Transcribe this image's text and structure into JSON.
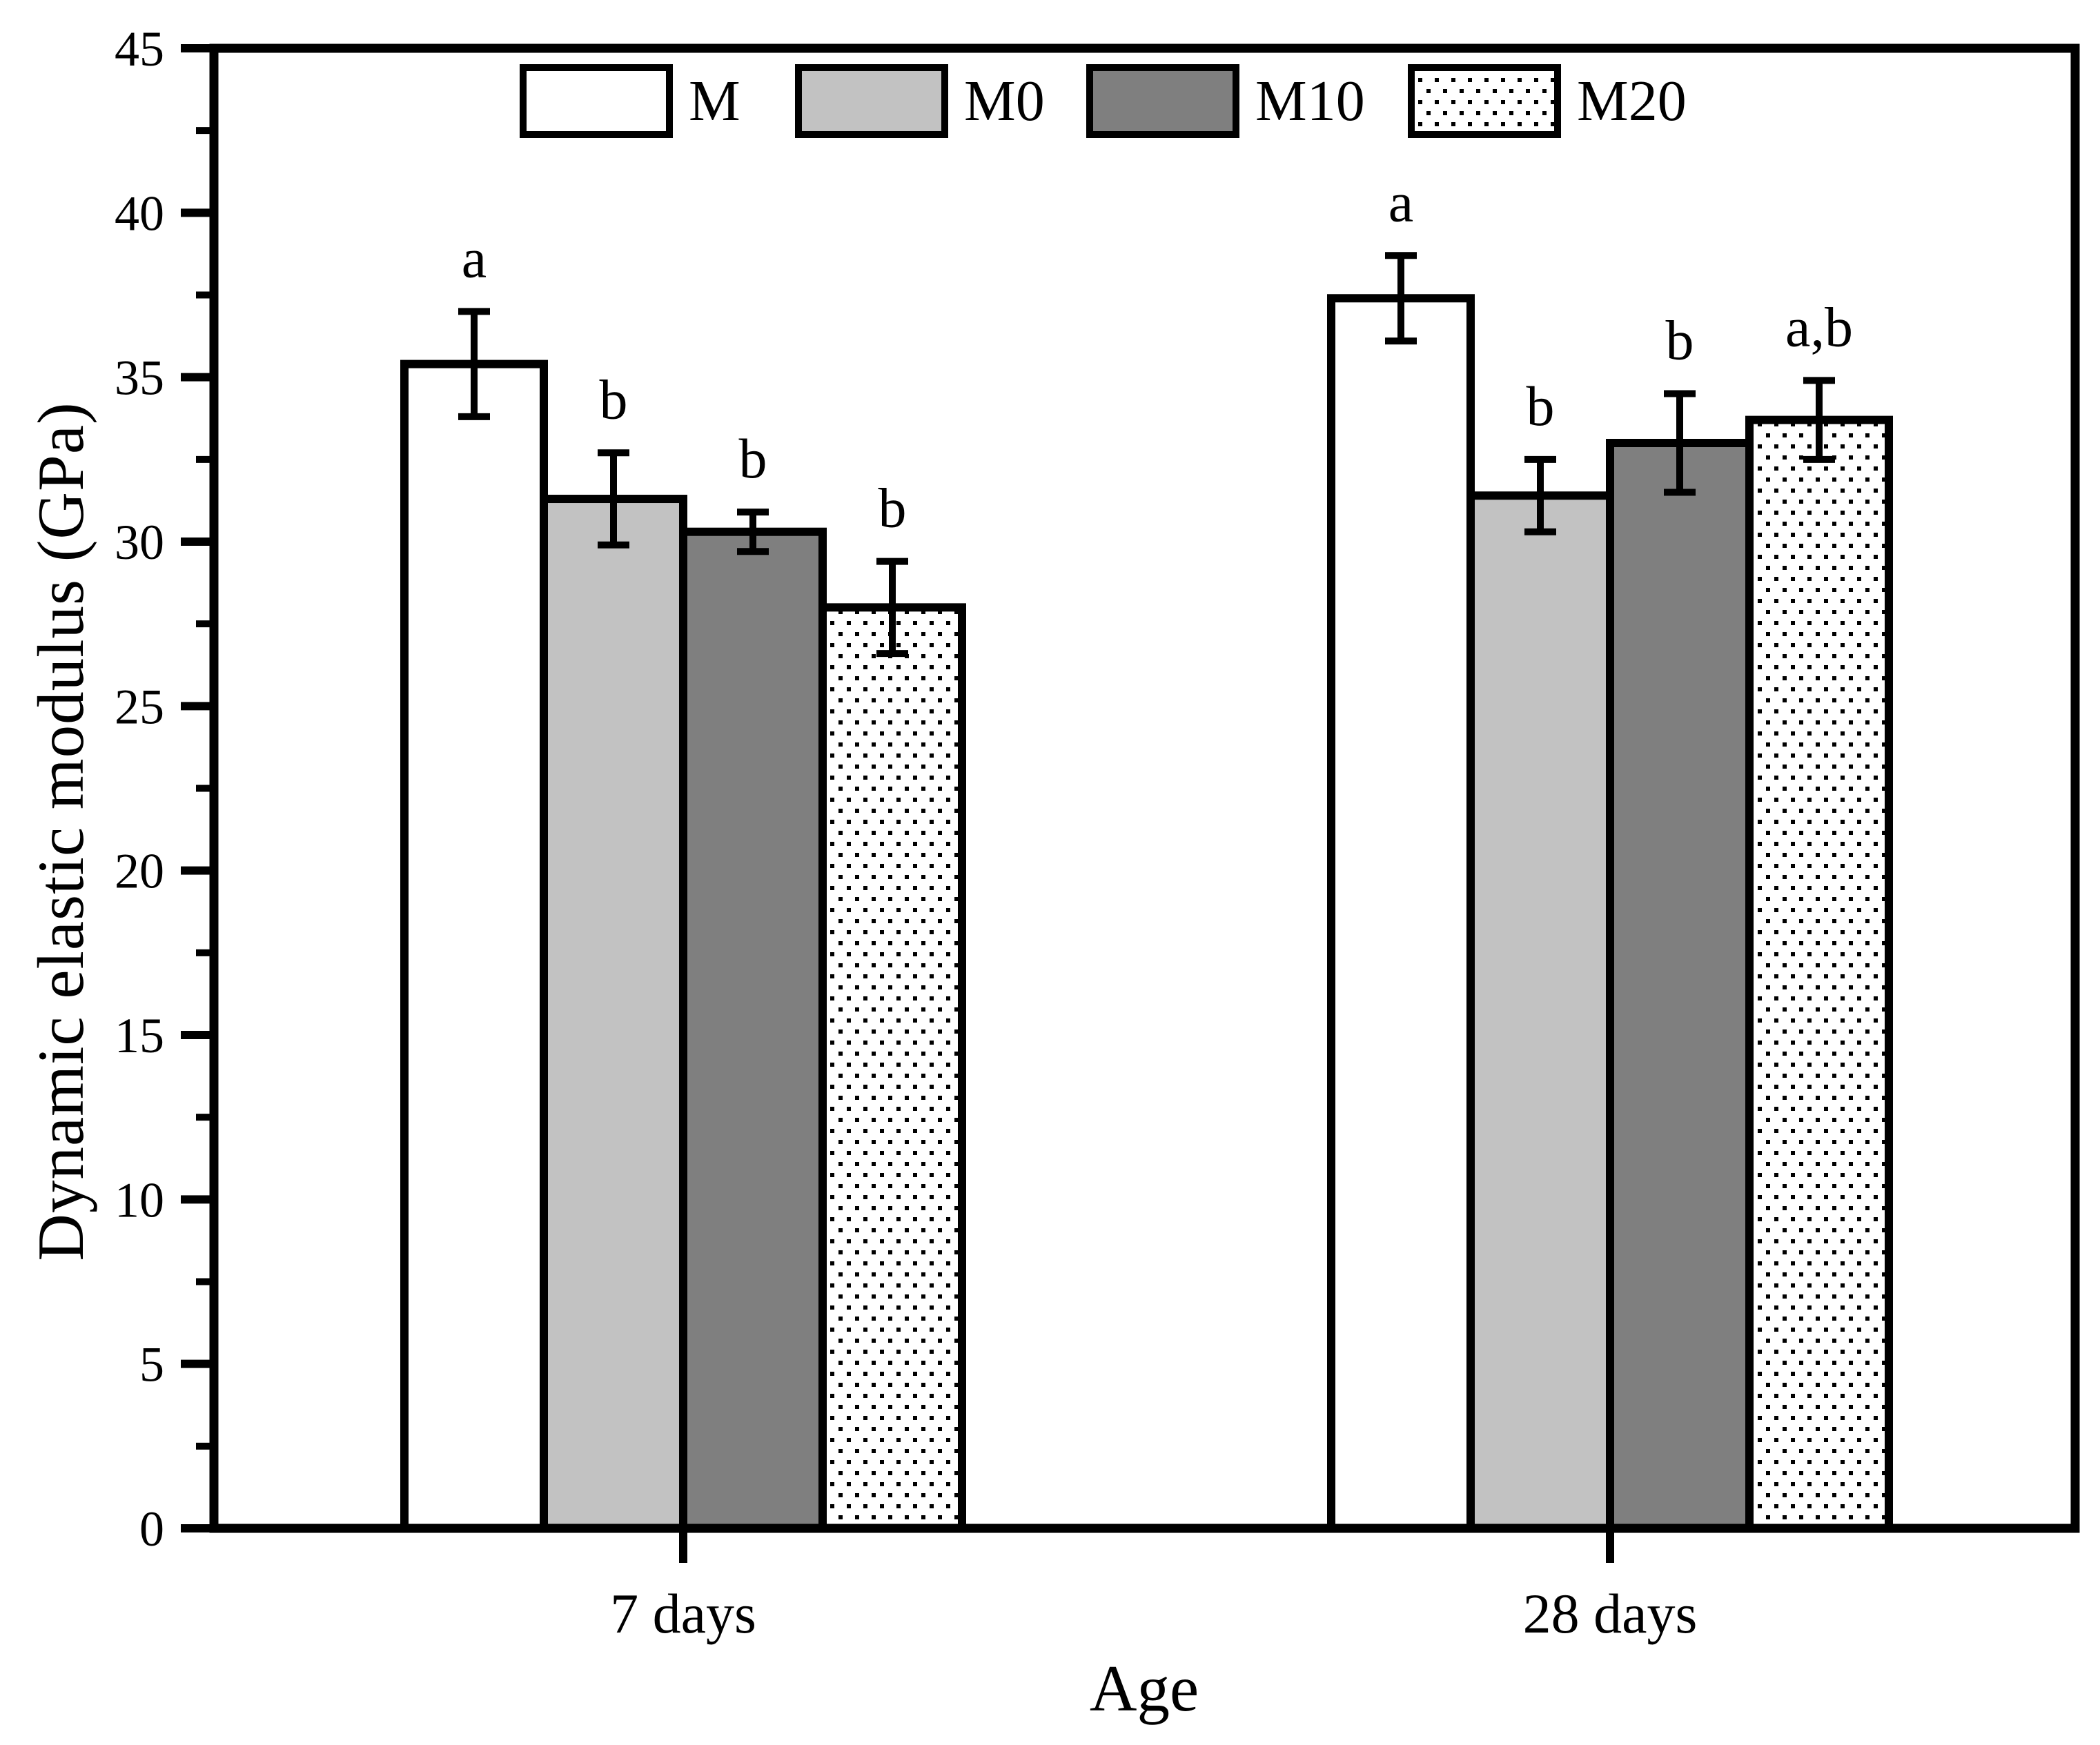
{
  "figure": {
    "type_hint": "scientific grouped bar chart with error bars and significance letters",
    "background": "#ffffff",
    "axis_color": "#000000"
  },
  "chart_data": {
    "type": "bar",
    "title": "",
    "xlabel": "Age",
    "ylabel": "Dynamic elastic modulus (GPa)",
    "ylim": [
      0,
      45
    ],
    "yticks": [
      0,
      5,
      10,
      15,
      20,
      25,
      30,
      35,
      40,
      45
    ],
    "y_minor_step": 2.5,
    "grid": false,
    "legend_position": "top-inside-horizontal",
    "categories": [
      "7 days",
      "28 days"
    ],
    "series": [
      {
        "name": "M",
        "fill": "#ffffff",
        "pattern": "none",
        "values": [
          35.4,
          37.4
        ],
        "errors": [
          1.6,
          1.3
        ],
        "sig": [
          "a",
          "a"
        ]
      },
      {
        "name": "M0",
        "fill": "#c2c2c2",
        "pattern": "none",
        "values": [
          31.3,
          31.4
        ],
        "errors": [
          1.4,
          1.1
        ],
        "sig": [
          "b",
          "b"
        ]
      },
      {
        "name": "M10",
        "fill": "#7f7f7f",
        "pattern": "none",
        "values": [
          30.3,
          33.0
        ],
        "errors": [
          0.6,
          1.5
        ],
        "sig": [
          "b",
          "b"
        ]
      },
      {
        "name": "M20",
        "fill": "#ffffff",
        "pattern": "dots",
        "values": [
          28.0,
          33.7
        ],
        "errors": [
          1.4,
          1.2
        ],
        "sig": [
          "b",
          "a,b"
        ]
      }
    ]
  }
}
